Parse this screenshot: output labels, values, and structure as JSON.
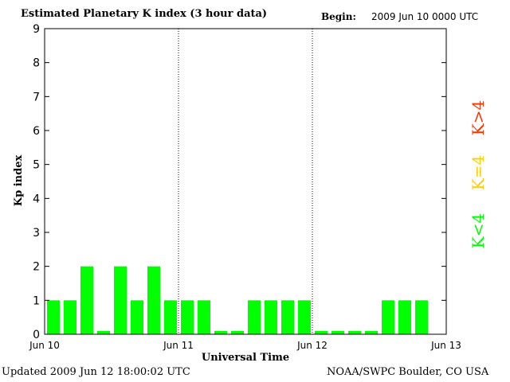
{
  "header": {
    "title": "Estimated Planetary K index (3 hour data)",
    "begin_label": "Begin:",
    "begin_value": "2009 Jun 10 0000 UTC"
  },
  "footer": {
    "updated": "Updated 2009 Jun 12 18:00:02 UTC",
    "credit": "NOAA/SWPC Boulder, CO USA"
  },
  "colors": {
    "bar": "#00ff00",
    "legend_quiet": "#00ff00",
    "legend_active": "#ffcc00",
    "legend_storm": "#ff3300"
  },
  "chart_data": {
    "type": "bar",
    "title": "Estimated Planetary K index (3 hour data)",
    "xlabel": "Universal Time",
    "ylabel": "Kp index",
    "ylim": [
      0,
      9
    ],
    "yticks": [
      0,
      1,
      2,
      3,
      4,
      5,
      6,
      7,
      8,
      9
    ],
    "xlim_days": [
      0,
      3
    ],
    "xticks": [
      {
        "day": 0,
        "label": "Jun 10"
      },
      {
        "day": 1,
        "label": "Jun 11"
      },
      {
        "day": 2,
        "label": "Jun 12"
      },
      {
        "day": 3,
        "label": "Jun 13"
      }
    ],
    "day_dividers": [
      1,
      2
    ],
    "interval_hours": 3,
    "values": [
      1,
      1,
      2,
      0.1,
      2,
      1,
      2,
      1,
      1,
      1,
      0.1,
      0.1,
      1,
      1,
      1,
      1,
      0.1,
      0.1,
      0.1,
      0.1,
      1,
      1,
      1
    ],
    "legend": [
      {
        "label": "K<4",
        "color": "#00ff00"
      },
      {
        "label": "K=4",
        "color": "#ffcc00"
      },
      {
        "label": "K>4",
        "color": "#ff3300"
      }
    ]
  }
}
